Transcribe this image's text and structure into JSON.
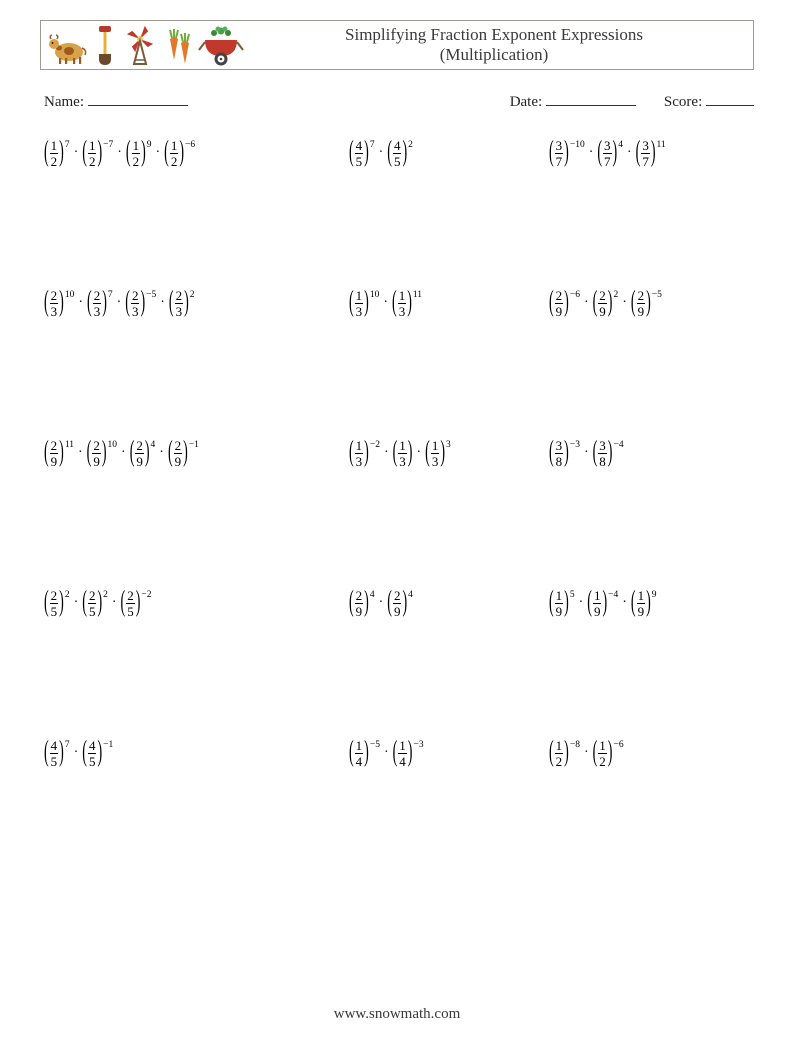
{
  "header": {
    "title_line1": "Simplifying Fraction Exponent Expressions",
    "title_line2": "(Multiplication)",
    "colors": {
      "border": "#a09a94",
      "cow_body": "#d8a24a",
      "cow_dark": "#9c5a1f",
      "shovel_handle": "#e8b03a",
      "shovel_head": "#6a4a2a",
      "shovel_grip": "#b43a2a",
      "windmill_blades": "#c0392b",
      "windmill_center": "#e0d060",
      "windmill_frame": "#7a5a3a",
      "carrot_top": "#6fae3a",
      "carrot_root": "#e07a2a",
      "wheelbarrow_body": "#c0392b",
      "wheelbarrow_plant": "#3a8a3a",
      "wheelbarrow_wheel": "#444"
    }
  },
  "meta": {
    "name_label": "Name:",
    "date_label": "Date:",
    "score_label": "Score:"
  },
  "dot": "·",
  "problems": [
    [
      [
        {
          "n": "1",
          "d": "2",
          "e": "7"
        },
        {
          "n": "1",
          "d": "2",
          "e": "−7"
        },
        {
          "n": "1",
          "d": "2",
          "e": "9"
        },
        {
          "n": "1",
          "d": "2",
          "e": "−6"
        }
      ],
      [
        {
          "n": "4",
          "d": "5",
          "e": "7"
        },
        {
          "n": "4",
          "d": "5",
          "e": "2"
        }
      ],
      [
        {
          "n": "3",
          "d": "7",
          "e": "−10"
        },
        {
          "n": "3",
          "d": "7",
          "e": "4"
        },
        {
          "n": "3",
          "d": "7",
          "e": "11"
        }
      ]
    ],
    [
      [
        {
          "n": "2",
          "d": "3",
          "e": "10"
        },
        {
          "n": "2",
          "d": "3",
          "e": "7"
        },
        {
          "n": "2",
          "d": "3",
          "e": "−5"
        },
        {
          "n": "2",
          "d": "3",
          "e": "2"
        }
      ],
      [
        {
          "n": "1",
          "d": "3",
          "e": "10"
        },
        {
          "n": "1",
          "d": "3",
          "e": "11"
        }
      ],
      [
        {
          "n": "2",
          "d": "9",
          "e": "−6"
        },
        {
          "n": "2",
          "d": "9",
          "e": "2"
        },
        {
          "n": "2",
          "d": "9",
          "e": "−5"
        }
      ]
    ],
    [
      [
        {
          "n": "2",
          "d": "9",
          "e": "11"
        },
        {
          "n": "2",
          "d": "9",
          "e": "10"
        },
        {
          "n": "2",
          "d": "9",
          "e": "4"
        },
        {
          "n": "2",
          "d": "9",
          "e": "−1"
        }
      ],
      [
        {
          "n": "1",
          "d": "3",
          "e": "−2"
        },
        {
          "n": "1",
          "d": "3",
          "e": ""
        },
        {
          "n": "1",
          "d": "3",
          "e": "3"
        }
      ],
      [
        {
          "n": "3",
          "d": "8",
          "e": "−3"
        },
        {
          "n": "3",
          "d": "8",
          "e": "−4"
        }
      ]
    ],
    [
      [
        {
          "n": "2",
          "d": "5",
          "e": "2"
        },
        {
          "n": "2",
          "d": "5",
          "e": "2"
        },
        {
          "n": "2",
          "d": "5",
          "e": "−2"
        }
      ],
      [
        {
          "n": "2",
          "d": "9",
          "e": "4"
        },
        {
          "n": "2",
          "d": "9",
          "e": "4"
        }
      ],
      [
        {
          "n": "1",
          "d": "9",
          "e": "5"
        },
        {
          "n": "1",
          "d": "9",
          "e": "−4"
        },
        {
          "n": "1",
          "d": "9",
          "e": "9"
        }
      ]
    ],
    [
      [
        {
          "n": "4",
          "d": "5",
          "e": "7"
        },
        {
          "n": "4",
          "d": "5",
          "e": "−1"
        }
      ],
      [
        {
          "n": "1",
          "d": "4",
          "e": "−5"
        },
        {
          "n": "1",
          "d": "4",
          "e": "−3"
        }
      ],
      [
        {
          "n": "1",
          "d": "2",
          "e": "−8"
        },
        {
          "n": "1",
          "d": "2",
          "e": "−6"
        }
      ]
    ]
  ],
  "footer": "www.snowmath.com"
}
